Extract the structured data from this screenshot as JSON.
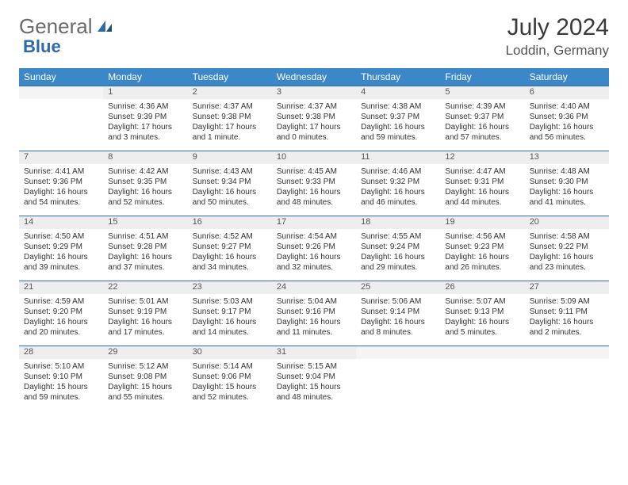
{
  "logo": {
    "text1": "General",
    "text2": "Blue"
  },
  "title": "July 2024",
  "location": "Loddin, Germany",
  "colors": {
    "header_bg": "#3c87c7",
    "header_text": "#ffffff",
    "daynum_bg": "#eeeeee",
    "border": "#2f6aa8",
    "text": "#333333",
    "logo_gray": "#6b6b6b",
    "logo_blue": "#2f6aa8"
  },
  "day_headers": [
    "Sunday",
    "Monday",
    "Tuesday",
    "Wednesday",
    "Thursday",
    "Friday",
    "Saturday"
  ],
  "weeks": [
    {
      "nums": [
        "",
        "1",
        "2",
        "3",
        "4",
        "5",
        "6"
      ],
      "cells": [
        null,
        {
          "sunrise": "4:36 AM",
          "sunset": "9:39 PM",
          "daylight": "17 hours and 3 minutes."
        },
        {
          "sunrise": "4:37 AM",
          "sunset": "9:38 PM",
          "daylight": "17 hours and 1 minute."
        },
        {
          "sunrise": "4:37 AM",
          "sunset": "9:38 PM",
          "daylight": "17 hours and 0 minutes."
        },
        {
          "sunrise": "4:38 AM",
          "sunset": "9:37 PM",
          "daylight": "16 hours and 59 minutes."
        },
        {
          "sunrise": "4:39 AM",
          "sunset": "9:37 PM",
          "daylight": "16 hours and 57 minutes."
        },
        {
          "sunrise": "4:40 AM",
          "sunset": "9:36 PM",
          "daylight": "16 hours and 56 minutes."
        }
      ]
    },
    {
      "nums": [
        "7",
        "8",
        "9",
        "10",
        "11",
        "12",
        "13"
      ],
      "cells": [
        {
          "sunrise": "4:41 AM",
          "sunset": "9:36 PM",
          "daylight": "16 hours and 54 minutes."
        },
        {
          "sunrise": "4:42 AM",
          "sunset": "9:35 PM",
          "daylight": "16 hours and 52 minutes."
        },
        {
          "sunrise": "4:43 AM",
          "sunset": "9:34 PM",
          "daylight": "16 hours and 50 minutes."
        },
        {
          "sunrise": "4:45 AM",
          "sunset": "9:33 PM",
          "daylight": "16 hours and 48 minutes."
        },
        {
          "sunrise": "4:46 AM",
          "sunset": "9:32 PM",
          "daylight": "16 hours and 46 minutes."
        },
        {
          "sunrise": "4:47 AM",
          "sunset": "9:31 PM",
          "daylight": "16 hours and 44 minutes."
        },
        {
          "sunrise": "4:48 AM",
          "sunset": "9:30 PM",
          "daylight": "16 hours and 41 minutes."
        }
      ]
    },
    {
      "nums": [
        "14",
        "15",
        "16",
        "17",
        "18",
        "19",
        "20"
      ],
      "cells": [
        {
          "sunrise": "4:50 AM",
          "sunset": "9:29 PM",
          "daylight": "16 hours and 39 minutes."
        },
        {
          "sunrise": "4:51 AM",
          "sunset": "9:28 PM",
          "daylight": "16 hours and 37 minutes."
        },
        {
          "sunrise": "4:52 AM",
          "sunset": "9:27 PM",
          "daylight": "16 hours and 34 minutes."
        },
        {
          "sunrise": "4:54 AM",
          "sunset": "9:26 PM",
          "daylight": "16 hours and 32 minutes."
        },
        {
          "sunrise": "4:55 AM",
          "sunset": "9:24 PM",
          "daylight": "16 hours and 29 minutes."
        },
        {
          "sunrise": "4:56 AM",
          "sunset": "9:23 PM",
          "daylight": "16 hours and 26 minutes."
        },
        {
          "sunrise": "4:58 AM",
          "sunset": "9:22 PM",
          "daylight": "16 hours and 23 minutes."
        }
      ]
    },
    {
      "nums": [
        "21",
        "22",
        "23",
        "24",
        "25",
        "26",
        "27"
      ],
      "cells": [
        {
          "sunrise": "4:59 AM",
          "sunset": "9:20 PM",
          "daylight": "16 hours and 20 minutes."
        },
        {
          "sunrise": "5:01 AM",
          "sunset": "9:19 PM",
          "daylight": "16 hours and 17 minutes."
        },
        {
          "sunrise": "5:03 AM",
          "sunset": "9:17 PM",
          "daylight": "16 hours and 14 minutes."
        },
        {
          "sunrise": "5:04 AM",
          "sunset": "9:16 PM",
          "daylight": "16 hours and 11 minutes."
        },
        {
          "sunrise": "5:06 AM",
          "sunset": "9:14 PM",
          "daylight": "16 hours and 8 minutes."
        },
        {
          "sunrise": "5:07 AM",
          "sunset": "9:13 PM",
          "daylight": "16 hours and 5 minutes."
        },
        {
          "sunrise": "5:09 AM",
          "sunset": "9:11 PM",
          "daylight": "16 hours and 2 minutes."
        }
      ]
    },
    {
      "nums": [
        "28",
        "29",
        "30",
        "31",
        "",
        "",
        ""
      ],
      "cells": [
        {
          "sunrise": "5:10 AM",
          "sunset": "9:10 PM",
          "daylight": "15 hours and 59 minutes."
        },
        {
          "sunrise": "5:12 AM",
          "sunset": "9:08 PM",
          "daylight": "15 hours and 55 minutes."
        },
        {
          "sunrise": "5:14 AM",
          "sunset": "9:06 PM",
          "daylight": "15 hours and 52 minutes."
        },
        {
          "sunrise": "5:15 AM",
          "sunset": "9:04 PM",
          "daylight": "15 hours and 48 minutes."
        },
        null,
        null,
        null
      ]
    }
  ],
  "labels": {
    "sunrise": "Sunrise:",
    "sunset": "Sunset:",
    "daylight": "Daylight:"
  }
}
